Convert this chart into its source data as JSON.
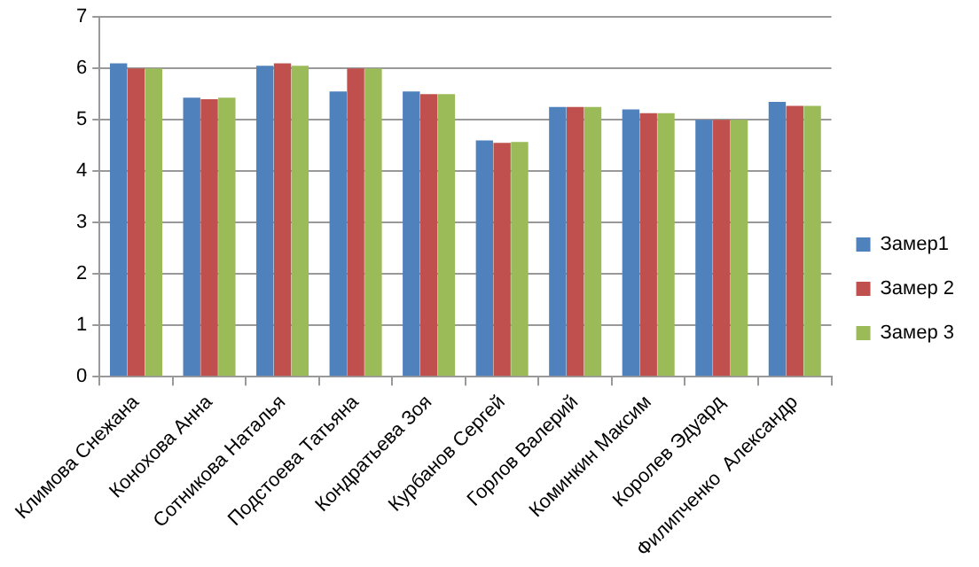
{
  "chart_data": {
    "type": "bar",
    "categories": [
      "Климова Снежана",
      "Конохова Анна",
      "Сотникова Наталья",
      "Подстоева Татьяна",
      "Кондратьева Зоя",
      "Курбанов Сергей",
      "Горлов Валерий",
      "Коминкин Максим",
      "Королев Эдуард",
      "Филипченко  Александр"
    ],
    "series": [
      {
        "name": "Замер1",
        "color": "#4f81bd",
        "values": [
          6.1,
          5.43,
          6.05,
          5.55,
          5.55,
          4.6,
          5.25,
          5.2,
          5.0,
          5.35
        ]
      },
      {
        "name": "Замер 2",
        "color": "#c0504d",
        "values": [
          6.0,
          5.4,
          6.1,
          6.0,
          5.5,
          4.55,
          5.25,
          5.13,
          5.0,
          5.27
        ]
      },
      {
        "name": "Замер 3",
        "color": "#9bbb59",
        "values": [
          6.0,
          5.43,
          6.05,
          6.0,
          5.5,
          4.57,
          5.25,
          5.13,
          5.0,
          5.27
        ]
      }
    ],
    "ylim": [
      0,
      7
    ],
    "yticks": [
      0,
      1,
      2,
      3,
      4,
      5,
      6,
      7
    ],
    "grid": "y",
    "legend": "right"
  }
}
